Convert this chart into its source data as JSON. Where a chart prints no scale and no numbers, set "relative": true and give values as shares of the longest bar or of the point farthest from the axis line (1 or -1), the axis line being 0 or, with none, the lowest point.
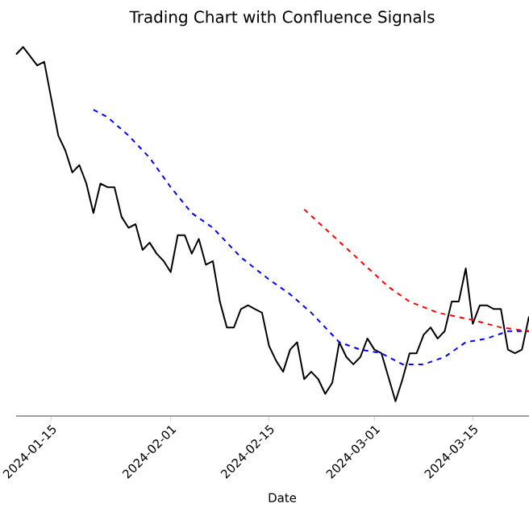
{
  "chart_data": {
    "type": "line",
    "title": "Trading Chart with Confluence Signals",
    "xlabel": "Date",
    "relative": true,
    "xlim": [
      "2024-01-10",
      "2024-03-23"
    ],
    "xticks": [
      "2024-01-15",
      "2024-02-01",
      "2024-02-15",
      "2024-03-01",
      "2024-03-15"
    ],
    "grid": false,
    "series": [
      {
        "color": "#000000",
        "line_style": "solid",
        "x": [
          "2024-01-10",
          "2024-01-11",
          "2024-01-13",
          "2024-01-14",
          "2024-01-16",
          "2024-01-17",
          "2024-01-18",
          "2024-01-19",
          "2024-01-20",
          "2024-01-21",
          "2024-01-22",
          "2024-01-23",
          "2024-01-24",
          "2024-01-25",
          "2024-01-26",
          "2024-01-27",
          "2024-01-28",
          "2024-01-29",
          "2024-01-30",
          "2024-01-31",
          "2024-02-01",
          "2024-02-02",
          "2024-02-03",
          "2024-02-04",
          "2024-02-05",
          "2024-02-06",
          "2024-02-07",
          "2024-02-08",
          "2024-02-09",
          "2024-02-10",
          "2024-02-11",
          "2024-02-12",
          "2024-02-13",
          "2024-02-14",
          "2024-02-15",
          "2024-02-16",
          "2024-02-17",
          "2024-02-18",
          "2024-02-19",
          "2024-02-20",
          "2024-02-21",
          "2024-02-22",
          "2024-02-23",
          "2024-02-24",
          "2024-02-25",
          "2024-02-26",
          "2024-02-27",
          "2024-02-28",
          "2024-02-29",
          "2024-03-01",
          "2024-03-02",
          "2024-03-04",
          "2024-03-05",
          "2024-03-06",
          "2024-03-07",
          "2024-03-08",
          "2024-03-09",
          "2024-03-10",
          "2024-03-11",
          "2024-03-12",
          "2024-03-13",
          "2024-03-14",
          "2024-03-15",
          "2024-03-16",
          "2024-03-17",
          "2024-03-18",
          "2024-03-19",
          "2024-03-20",
          "2024-03-21",
          "2024-03-22",
          "2024-03-23"
        ],
        "values": [
          0.98,
          1.0,
          0.95,
          0.96,
          0.76,
          0.72,
          0.66,
          0.68,
          0.63,
          0.55,
          0.63,
          0.62,
          0.62,
          0.54,
          0.51,
          0.52,
          0.45,
          0.47,
          0.44,
          0.42,
          0.39,
          0.49,
          0.49,
          0.44,
          0.48,
          0.41,
          0.42,
          0.31,
          0.24,
          0.24,
          0.29,
          0.3,
          0.29,
          0.28,
          0.19,
          0.15,
          0.12,
          0.18,
          0.2,
          0.1,
          0.12,
          0.1,
          0.06,
          0.09,
          0.2,
          0.16,
          0.14,
          0.16,
          0.21,
          0.18,
          0.17,
          0.04,
          0.1,
          0.17,
          0.17,
          0.22,
          0.24,
          0.21,
          0.23,
          0.31,
          0.31,
          0.4,
          0.25,
          0.3,
          0.3,
          0.29,
          0.29,
          0.18,
          0.17,
          0.18,
          0.27
        ]
      },
      {
        "color": "#0000ff",
        "line_style": "dashed",
        "x": [
          "2024-01-21",
          "2024-01-23",
          "2024-01-26",
          "2024-01-29",
          "2024-02-01",
          "2024-02-04",
          "2024-02-07",
          "2024-02-11",
          "2024-02-15",
          "2024-02-18",
          "2024-02-21",
          "2024-02-23",
          "2024-02-25",
          "2024-02-28",
          "2024-03-02",
          "2024-03-05",
          "2024-03-08",
          "2024-03-11",
          "2024-03-14",
          "2024-03-17",
          "2024-03-20",
          "2024-03-23"
        ],
        "values": [
          0.83,
          0.81,
          0.76,
          0.7,
          0.62,
          0.55,
          0.51,
          0.43,
          0.37,
          0.33,
          0.28,
          0.24,
          0.2,
          0.18,
          0.17,
          0.14,
          0.14,
          0.16,
          0.2,
          0.21,
          0.23,
          0.23
        ]
      },
      {
        "color": "#ff0000",
        "line_style": "dashed",
        "x": [
          "2024-02-20",
          "2024-02-24",
          "2024-02-28",
          "2024-03-03",
          "2024-03-06",
          "2024-03-10",
          "2024-03-15",
          "2024-03-19",
          "2024-03-23"
        ],
        "values": [
          0.56,
          0.49,
          0.42,
          0.35,
          0.31,
          0.28,
          0.26,
          0.24,
          0.23
        ]
      }
    ]
  }
}
